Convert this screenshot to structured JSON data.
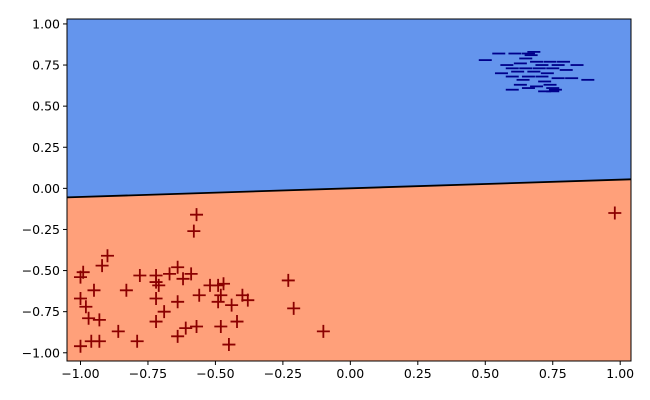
{
  "chart_data": {
    "type": "scatter",
    "title": "",
    "xlabel": "",
    "ylabel": "",
    "xlim": [
      -1.05,
      1.04
    ],
    "ylim": [
      -1.05,
      1.03
    ],
    "grid": false,
    "legend": "none",
    "x_ticks": [
      -1.0,
      -0.75,
      -0.5,
      -0.25,
      0.0,
      0.25,
      0.5,
      0.75,
      1.0
    ],
    "x_tick_labels": [
      "−1.00",
      "−0.75",
      "−0.50",
      "−0.25",
      "0.00",
      "0.25",
      "0.50",
      "0.75",
      "1.00"
    ],
    "y_ticks": [
      1.0,
      0.75,
      0.5,
      0.25,
      0.0,
      -0.25,
      -0.5,
      -0.75,
      -1.0
    ],
    "y_tick_labels": [
      "1.00",
      "0.75",
      "0.50",
      "0.25",
      "0.00",
      "−0.25",
      "−0.50",
      "−0.75",
      "−1.00"
    ],
    "regions": {
      "above_color": "#6495ed",
      "below_color": "#ffa07a"
    },
    "decision_boundary": {
      "color": "#000000",
      "points": [
        [
          -1.05,
          -0.055
        ],
        [
          1.04,
          0.055
        ]
      ]
    },
    "series": [
      {
        "marker": "minus",
        "color": "#00008b",
        "points": [
          [
            0.55,
            0.82
          ],
          [
            0.61,
            0.82
          ],
          [
            0.66,
            0.82
          ],
          [
            0.68,
            0.83
          ],
          [
            0.67,
            0.81
          ],
          [
            0.5,
            0.78
          ],
          [
            0.65,
            0.79
          ],
          [
            0.69,
            0.77
          ],
          [
            0.74,
            0.77
          ],
          [
            0.79,
            0.77
          ],
          [
            0.58,
            0.75
          ],
          [
            0.63,
            0.76
          ],
          [
            0.71,
            0.75
          ],
          [
            0.77,
            0.75
          ],
          [
            0.84,
            0.75
          ],
          [
            0.6,
            0.73
          ],
          [
            0.65,
            0.73
          ],
          [
            0.7,
            0.73
          ],
          [
            0.75,
            0.73
          ],
          [
            0.8,
            0.72
          ],
          [
            0.62,
            0.71
          ],
          [
            0.68,
            0.71
          ],
          [
            0.56,
            0.7
          ],
          [
            0.73,
            0.7
          ],
          [
            0.6,
            0.68
          ],
          [
            0.66,
            0.68
          ],
          [
            0.71,
            0.68
          ],
          [
            0.77,
            0.67
          ],
          [
            0.82,
            0.67
          ],
          [
            0.64,
            0.66
          ],
          [
            0.72,
            0.65
          ],
          [
            0.88,
            0.66
          ],
          [
            0.63,
            0.63
          ],
          [
            0.69,
            0.62
          ],
          [
            0.74,
            0.63
          ],
          [
            0.75,
            0.61
          ],
          [
            0.6,
            0.6
          ],
          [
            0.66,
            0.61
          ],
          [
            0.72,
            0.59
          ],
          [
            0.75,
            0.59
          ],
          [
            0.76,
            0.6
          ]
        ]
      },
      {
        "marker": "plus",
        "color": "#8b0000",
        "points": [
          [
            -0.57,
            -0.16
          ],
          [
            0.98,
            -0.15
          ],
          [
            -0.58,
            -0.26
          ],
          [
            -0.9,
            -0.41
          ],
          [
            -0.92,
            -0.47
          ],
          [
            -0.64,
            -0.48
          ],
          [
            -0.99,
            -0.51
          ],
          [
            -1.0,
            -0.54
          ],
          [
            -0.78,
            -0.53
          ],
          [
            -0.72,
            -0.53
          ],
          [
            -0.67,
            -0.52
          ],
          [
            -0.59,
            -0.52
          ],
          [
            -0.62,
            -0.55
          ],
          [
            -0.72,
            -0.57
          ],
          [
            -0.71,
            -0.59
          ],
          [
            -0.52,
            -0.59
          ],
          [
            -0.49,
            -0.59
          ],
          [
            -0.47,
            -0.58
          ],
          [
            -0.23,
            -0.56
          ],
          [
            -0.95,
            -0.62
          ],
          [
            -0.83,
            -0.62
          ],
          [
            -0.56,
            -0.65
          ],
          [
            -0.48,
            -0.65
          ],
          [
            -0.4,
            -0.65
          ],
          [
            -0.38,
            -0.68
          ],
          [
            -1.0,
            -0.67
          ],
          [
            -0.72,
            -0.67
          ],
          [
            -0.64,
            -0.69
          ],
          [
            -0.49,
            -0.69
          ],
          [
            -0.44,
            -0.71
          ],
          [
            -0.98,
            -0.72
          ],
          [
            -0.21,
            -0.73
          ],
          [
            -0.69,
            -0.75
          ],
          [
            -0.97,
            -0.79
          ],
          [
            -0.93,
            -0.8
          ],
          [
            -0.72,
            -0.81
          ],
          [
            -0.42,
            -0.81
          ],
          [
            -0.57,
            -0.84
          ],
          [
            -0.61,
            -0.85
          ],
          [
            -0.48,
            -0.84
          ],
          [
            -0.86,
            -0.87
          ],
          [
            -0.1,
            -0.87
          ],
          [
            -0.64,
            -0.9
          ],
          [
            -0.96,
            -0.93
          ],
          [
            -0.93,
            -0.93
          ],
          [
            -0.79,
            -0.93
          ],
          [
            -1.0,
            -0.96
          ],
          [
            -0.45,
            -0.95
          ]
        ]
      }
    ]
  }
}
